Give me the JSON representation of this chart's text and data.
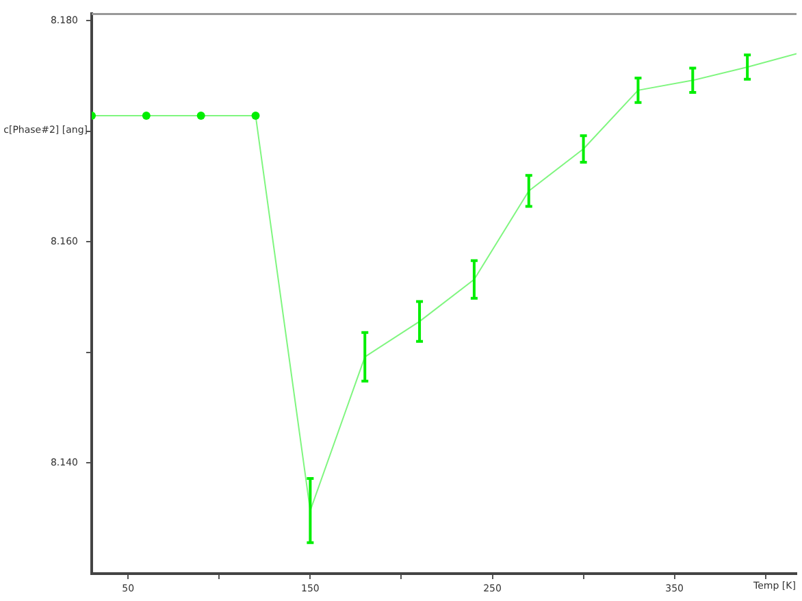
{
  "chart_data": {
    "type": "line",
    "xlabel": "Temp [K]",
    "ylabel": "c[Phase#2] [ang]",
    "x": [
      30,
      60,
      90,
      120,
      150,
      180,
      210,
      240,
      270,
      300,
      330,
      360,
      390,
      417
    ],
    "series": [
      {
        "color": "#00ee00",
        "marker": "circle",
        "values": [
          8.1714,
          8.1714,
          8.1714,
          8.1714,
          null,
          null,
          null,
          null,
          null,
          null,
          null,
          null,
          null,
          null
        ]
      },
      {
        "color": "#00ee00",
        "marker": "none",
        "values": [
          null,
          null,
          null,
          8.1714,
          8.1357,
          8.1496,
          8.1528,
          8.1566,
          8.1646,
          8.1684,
          8.1737,
          8.1746,
          8.1758,
          8.177
        ],
        "errors": [
          null,
          null,
          null,
          null,
          0.0029,
          0.0022,
          0.0018,
          0.0017,
          0.0014,
          0.0012,
          0.0011,
          0.0011,
          0.0011,
          null
        ]
      }
    ],
    "xlim": [
      30,
      417
    ],
    "xticks": [
      50,
      {
        "value": 100,
        "label": null
      },
      150,
      {
        "value": 200,
        "label": null
      },
      250,
      {
        "value": 300,
        "label": null
      },
      350,
      {
        "value": 400,
        "label": null
      }
    ],
    "ylim": [
      8.13,
      8.1806
    ],
    "yticks": [
      {
        "value": 8.14,
        "label": "8.140"
      },
      {
        "value": 8.15,
        "label": null
      },
      {
        "value": 8.16,
        "label": "8.160"
      },
      {
        "value": 8.17,
        "label": null
      },
      {
        "value": 8.18,
        "label": "8.180"
      }
    ],
    "line_style": "solid",
    "grid": false,
    "legend": false
  }
}
